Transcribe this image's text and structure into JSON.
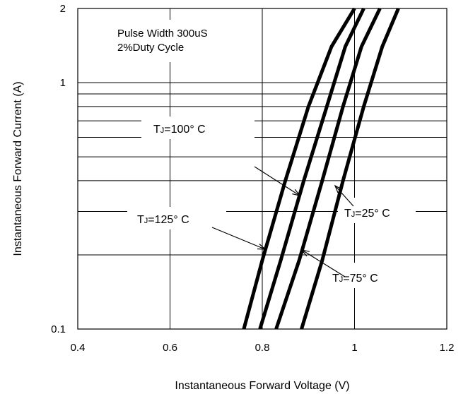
{
  "chart_data": {
    "type": "line",
    "title": "",
    "xlabel": "Instantaneous Forward Voltage (V)",
    "ylabel": "Instantaneous Forward Current (A)",
    "xlim": [
      0.4,
      1.2
    ],
    "ylim": [
      0.1,
      2
    ],
    "y_scale": "log",
    "x_ticks": [
      "0.4",
      "0.6",
      "0.8",
      "1",
      "1.2"
    ],
    "y_ticks": [
      "0.1",
      "1",
      "2"
    ],
    "grid": true,
    "annotation": [
      "Pulse Width 300uS",
      "2%Duty Cycle"
    ],
    "series": [
      {
        "name": "TJ=125° C",
        "label_main": "T",
        "label_sub": "J",
        "label_rest": "=125° C",
        "x": [
          0.76,
          0.8,
          0.85,
          0.9,
          0.95,
          1.0
        ],
        "y": [
          0.1,
          0.19,
          0.4,
          0.8,
          1.4,
          2.0
        ]
      },
      {
        "name": "TJ=100° C",
        "label_main": "T",
        "label_sub": "J",
        "label_rest": "=100° C",
        "x": [
          0.795,
          0.84,
          0.89,
          0.94,
          0.98,
          1.02
        ],
        "y": [
          0.1,
          0.19,
          0.4,
          0.8,
          1.4,
          2.0
        ]
      },
      {
        "name": "TJ=75° C",
        "label_main": "T",
        "label_sub": "J",
        "label_rest": "=75° C",
        "x": [
          0.83,
          0.88,
          0.93,
          0.975,
          1.015,
          1.055
        ],
        "y": [
          0.1,
          0.19,
          0.4,
          0.8,
          1.4,
          2.0
        ]
      },
      {
        "name": "TJ=25° C",
        "label_main": "T",
        "label_sub": "J",
        "label_rest": "=25° C",
        "x": [
          0.885,
          0.93,
          0.975,
          1.02,
          1.06,
          1.095
        ],
        "y": [
          0.1,
          0.19,
          0.4,
          0.8,
          1.4,
          2.0
        ]
      }
    ]
  }
}
